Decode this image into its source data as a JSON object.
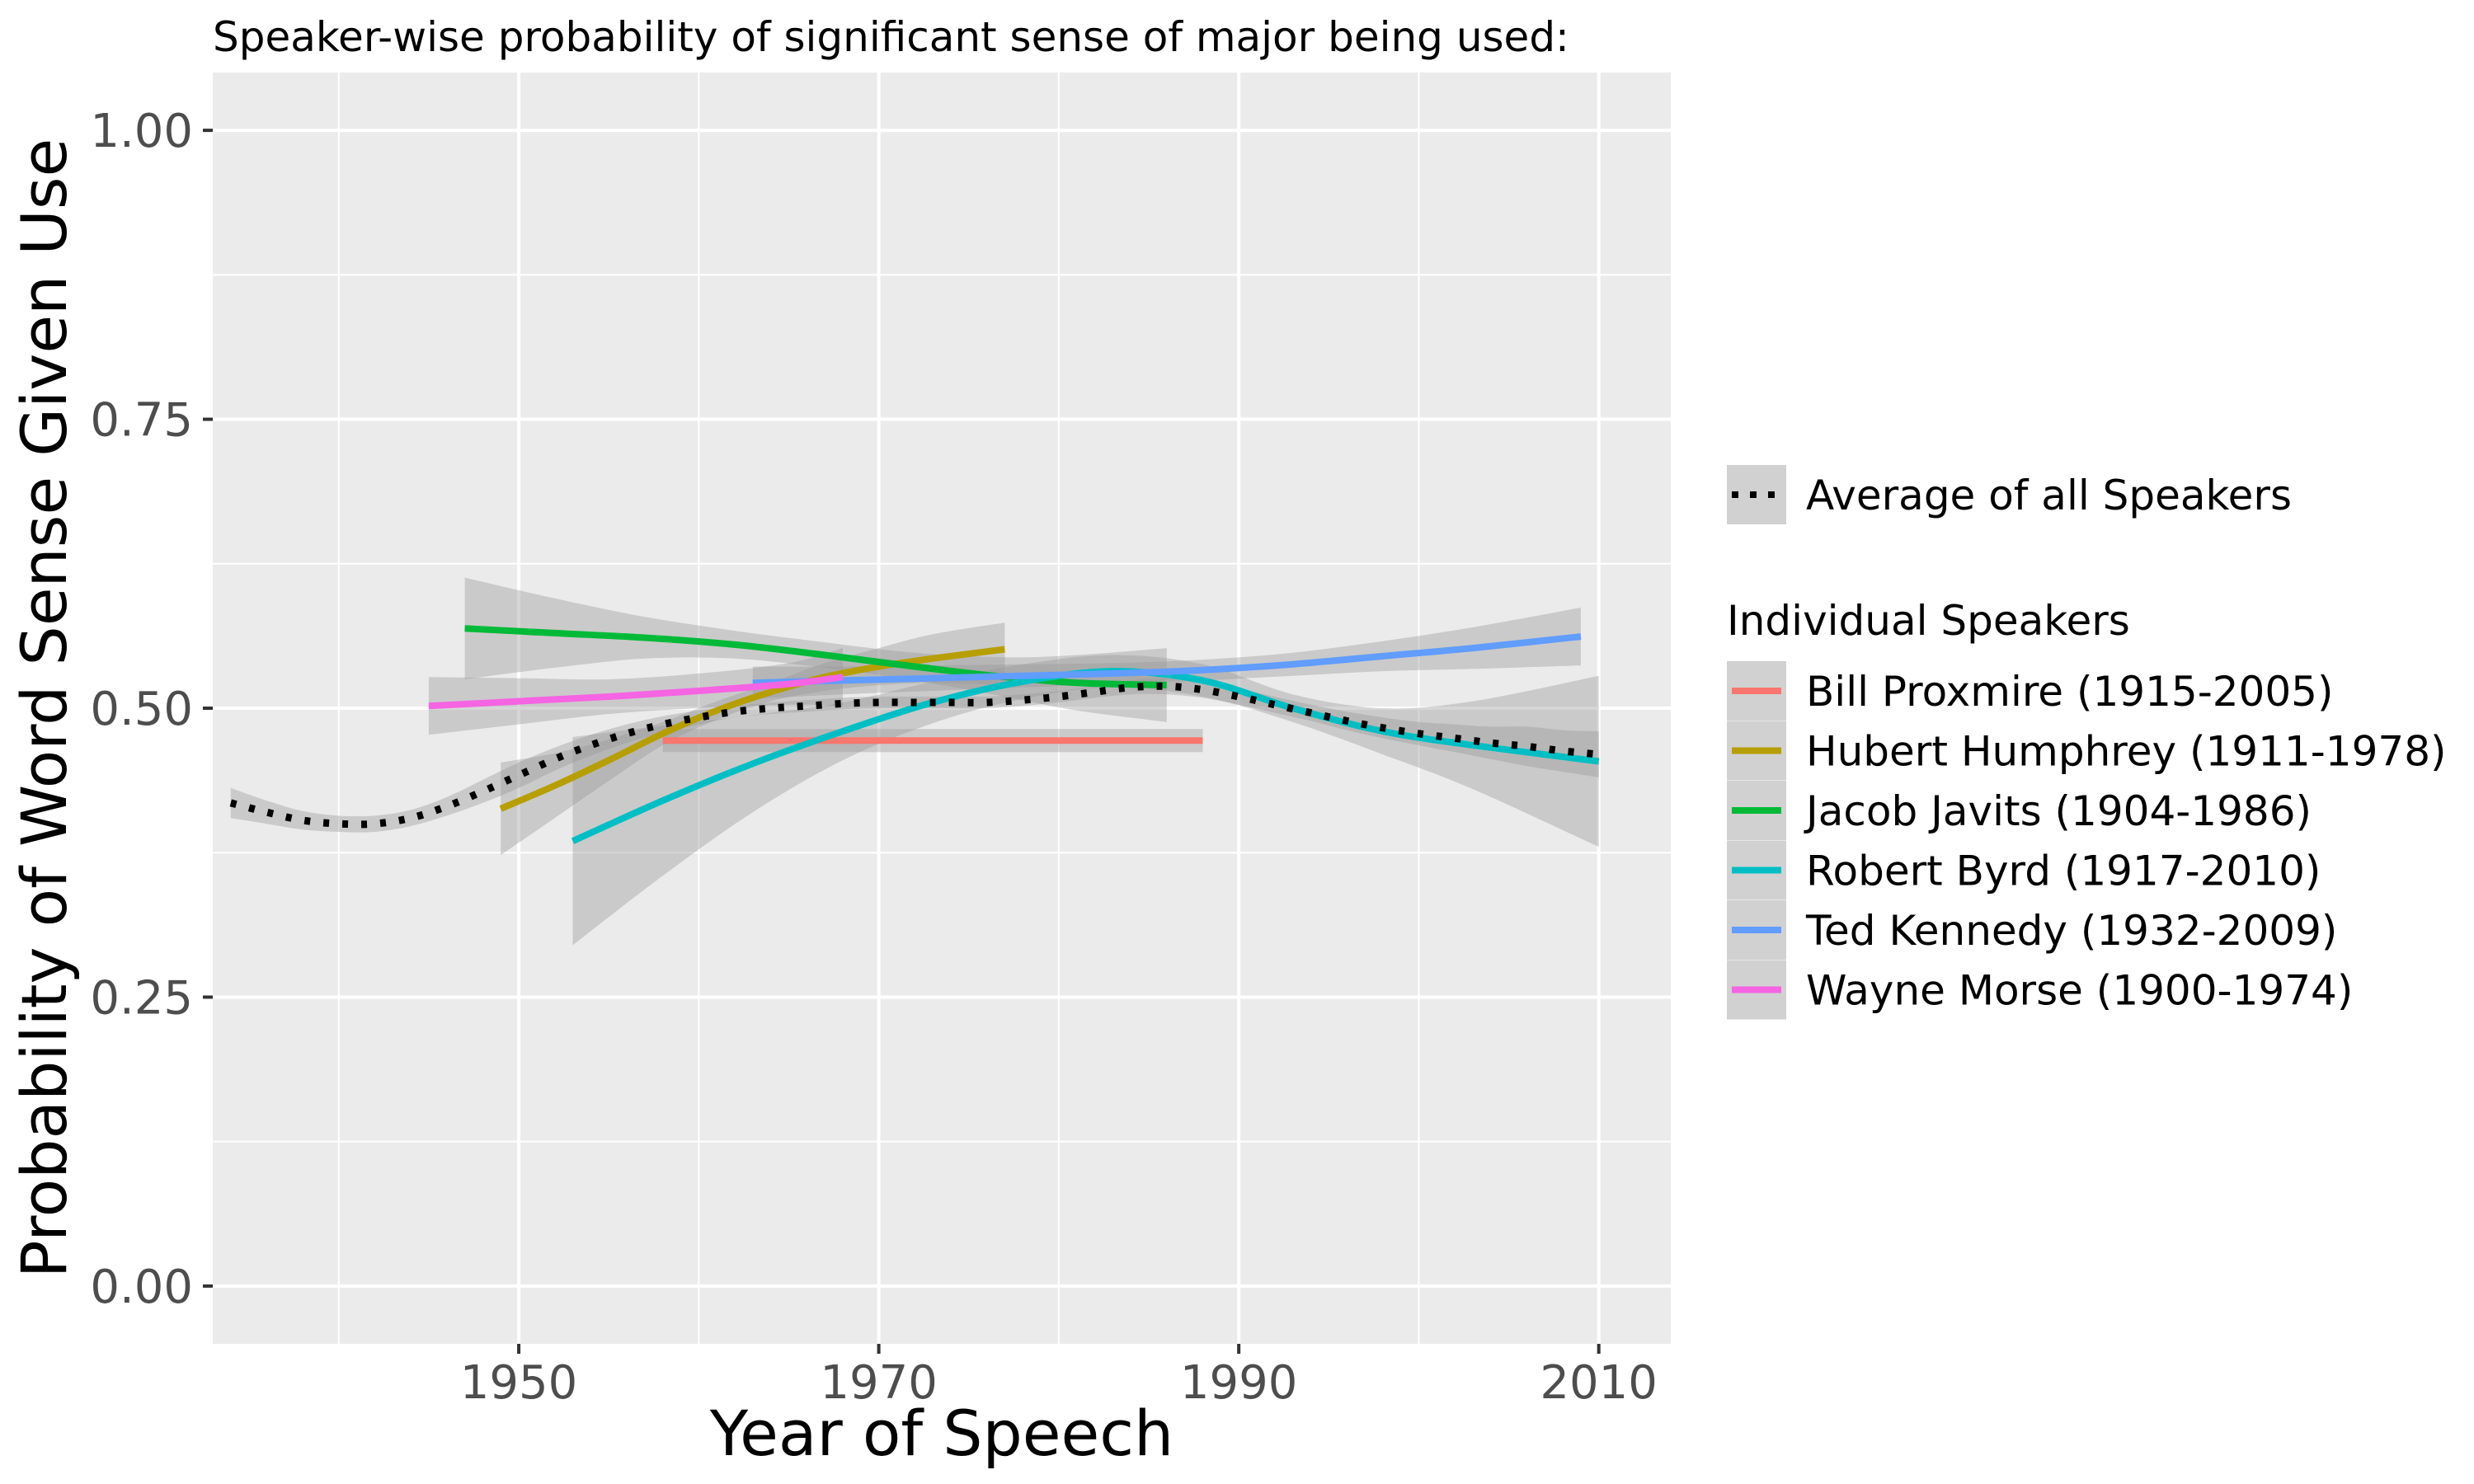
{
  "chart_data": {
    "type": "line",
    "title": "Speaker-wise probability of significant sense of major being used:",
    "xlabel": "Year of Speech",
    "ylabel": "Probability of Word Sense Given Use",
    "xlim": [
      1933,
      2014
    ],
    "ylim": [
      -0.05,
      1.05
    ],
    "x_ticks": [
      1950,
      1970,
      1990,
      2010
    ],
    "x_tick_labels": [
      "1950",
      "1970",
      "1990",
      "2010"
    ],
    "y_ticks": [
      0.0,
      0.25,
      0.5,
      0.75,
      1.0
    ],
    "y_tick_labels": [
      "0.00",
      "0.25",
      "0.50",
      "0.75",
      "1.00"
    ],
    "grid": true,
    "panel_background": "#ebebeb",
    "legend_position": "right",
    "average_legend": {
      "label": "Average of all Speakers"
    },
    "individual_legend": {
      "title": "Individual Speakers"
    },
    "average": {
      "name": "Average of all Speakers",
      "color": "#000000",
      "style": "dotted",
      "x": [
        1934,
        1936,
        1938,
        1940,
        1942,
        1944,
        1946,
        1948,
        1950,
        1952,
        1954,
        1956,
        1958,
        1960,
        1962,
        1964,
        1966,
        1968,
        1970,
        1972,
        1974,
        1976,
        1978,
        1980,
        1982,
        1984,
        1986,
        1988,
        1990,
        1992,
        1994,
        1996,
        1998,
        2000,
        2002,
        2004,
        2006,
        2008,
        2010
      ],
      "y": [
        0.418,
        0.41,
        0.403,
        0.4,
        0.4,
        0.405,
        0.415,
        0.428,
        0.442,
        0.456,
        0.468,
        0.478,
        0.486,
        0.492,
        0.497,
        0.5,
        0.502,
        0.504,
        0.505,
        0.505,
        0.505,
        0.505,
        0.507,
        0.51,
        0.514,
        0.518,
        0.519,
        0.516,
        0.51,
        0.503,
        0.496,
        0.489,
        0.483,
        0.478,
        0.474,
        0.47,
        0.467,
        0.463,
        0.46
      ],
      "ci_lower": [
        0.405,
        0.4,
        0.395,
        0.393,
        0.393,
        0.398,
        0.407,
        0.418,
        0.431,
        0.446,
        0.459,
        0.47,
        0.479,
        0.486,
        0.492,
        0.495,
        0.497,
        0.499,
        0.5,
        0.5,
        0.5,
        0.5,
        0.502,
        0.505,
        0.509,
        0.512,
        0.512,
        0.509,
        0.503,
        0.496,
        0.489,
        0.481,
        0.474,
        0.468,
        0.462,
        0.456,
        0.45,
        0.445,
        0.44
      ],
      "ci_upper": [
        0.431,
        0.42,
        0.411,
        0.407,
        0.407,
        0.412,
        0.423,
        0.438,
        0.453,
        0.466,
        0.477,
        0.486,
        0.493,
        0.498,
        0.502,
        0.505,
        0.507,
        0.509,
        0.51,
        0.51,
        0.51,
        0.51,
        0.512,
        0.515,
        0.519,
        0.524,
        0.526,
        0.523,
        0.517,
        0.51,
        0.503,
        0.497,
        0.492,
        0.488,
        0.486,
        0.484,
        0.484,
        0.481,
        0.48
      ]
    },
    "series": [
      {
        "name": "Bill Proxmire (1915-2005)",
        "color": "#f8766d",
        "x": [
          1958,
          1988
        ],
        "y": [
          0.472,
          0.472
        ],
        "ci_lower": [
          0.462,
          0.462
        ],
        "ci_upper": [
          0.482,
          0.482
        ]
      },
      {
        "name": "Hubert Humphrey (1911-1978)",
        "color": "#b79f00",
        "x": [
          1949,
          1952,
          1955,
          1958,
          1961,
          1964,
          1967,
          1970,
          1973,
          1977
        ],
        "y": [
          0.413,
          0.433,
          0.455,
          0.478,
          0.498,
          0.514,
          0.527,
          0.536,
          0.543,
          0.551
        ],
        "ci_lower": [
          0.373,
          0.405,
          0.437,
          0.468,
          0.49,
          0.506,
          0.515,
          0.52,
          0.522,
          0.52
        ],
        "ci_upper": [
          0.453,
          0.461,
          0.473,
          0.488,
          0.506,
          0.522,
          0.539,
          0.552,
          0.564,
          0.574
        ]
      },
      {
        "name": "Jacob Javits (1904-1986)",
        "color": "#00ba38",
        "x": [
          1947,
          1952,
          1957,
          1962,
          1967,
          1972,
          1977,
          1981,
          1986
        ],
        "y": [
          0.569,
          0.565,
          0.561,
          0.555,
          0.546,
          0.536,
          0.527,
          0.522,
          0.52
        ],
        "ci_lower": [
          0.525,
          0.535,
          0.543,
          0.543,
          0.535,
          0.524,
          0.51,
          0.498,
          0.488
        ],
        "ci_upper": [
          0.613,
          0.595,
          0.579,
          0.567,
          0.557,
          0.548,
          0.544,
          0.546,
          0.552
        ]
      },
      {
        "name": "Robert Byrd (1917-2010)",
        "color": "#00bfc4",
        "x": [
          1953,
          1958,
          1963,
          1968,
          1973,
          1978,
          1983,
          1988,
          1993,
          1998,
          2003,
          2010
        ],
        "y": [
          0.385,
          0.42,
          0.452,
          0.48,
          0.505,
          0.523,
          0.532,
          0.524,
          0.5,
          0.48,
          0.468,
          0.454
        ],
        "ci_lower": [
          0.295,
          0.355,
          0.41,
          0.455,
          0.487,
          0.508,
          0.518,
          0.51,
          0.488,
          0.46,
          0.43,
          0.38
        ],
        "ci_upper": [
          0.475,
          0.485,
          0.494,
          0.505,
          0.523,
          0.538,
          0.546,
          0.538,
          0.512,
          0.5,
          0.506,
          0.528
        ]
      },
      {
        "name": "Ted Kennedy (1932-2009)",
        "color": "#619cff",
        "x": [
          1963,
          1968,
          1973,
          1978,
          1983,
          1988,
          1993,
          1998,
          2003,
          2009
        ],
        "y": [
          0.522,
          0.524,
          0.526,
          0.528,
          0.53,
          0.533,
          0.538,
          0.545,
          0.552,
          0.562
        ],
        "ci_lower": [
          0.508,
          0.512,
          0.515,
          0.518,
          0.521,
          0.524,
          0.528,
          0.532,
          0.534,
          0.537
        ],
        "ci_upper": [
          0.536,
          0.536,
          0.537,
          0.538,
          0.539,
          0.542,
          0.548,
          0.558,
          0.57,
          0.587
        ]
      },
      {
        "name": "Wayne Morse (1900-1974)",
        "color": "#f564e3",
        "x": [
          1945,
          1950,
          1955,
          1960,
          1965,
          1968
        ],
        "y": [
          0.502,
          0.506,
          0.51,
          0.515,
          0.521,
          0.527
        ],
        "ci_lower": [
          0.477,
          0.486,
          0.495,
          0.5,
          0.503,
          0.502
        ],
        "ci_upper": [
          0.527,
          0.526,
          0.525,
          0.53,
          0.539,
          0.552
        ]
      }
    ]
  }
}
